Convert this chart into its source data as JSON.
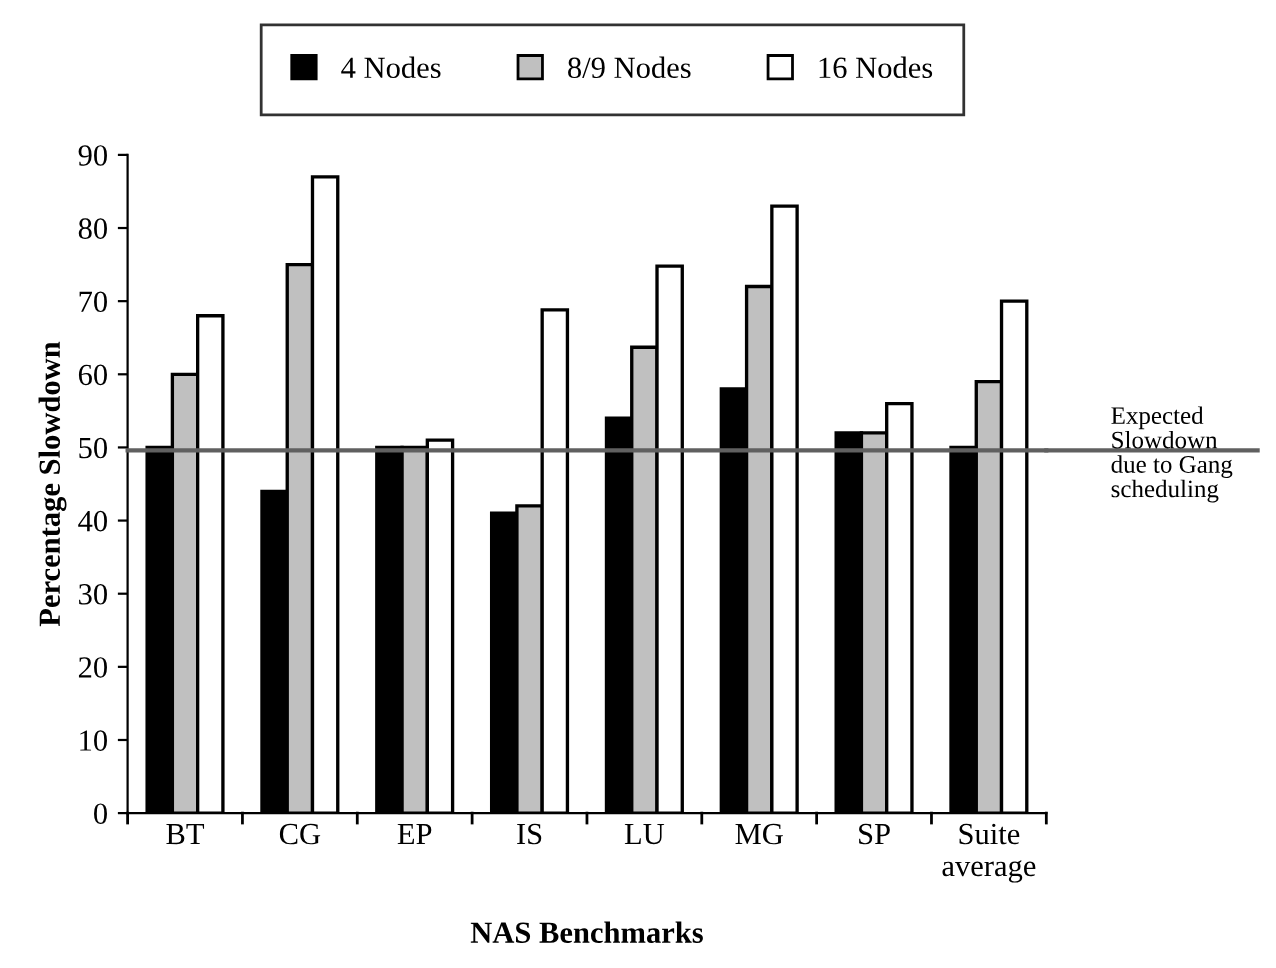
{
  "chart_data": {
    "type": "bar",
    "xlabel": "NAS Benchmarks",
    "ylabel": "Percentage Slowdown",
    "categories": [
      "BT",
      "CG",
      "EP",
      "IS",
      "LU",
      "MG",
      "SP",
      "Suite\naverage"
    ],
    "series": [
      {
        "name": "4 Nodes",
        "color": "#000000",
        "values": [
          50,
          44,
          50,
          41,
          54,
          58,
          52,
          50
        ]
      },
      {
        "name": "8/9 Nodes",
        "color": "#c0c0c0",
        "values": [
          60,
          75,
          50,
          42,
          63.7,
          72,
          52,
          59
        ]
      },
      {
        "name": "16 Nodes",
        "color": "#ffffff",
        "values": [
          68,
          87,
          51,
          68.8,
          74.8,
          83,
          56,
          70
        ]
      }
    ],
    "ylim": [
      0,
      90
    ],
    "yticks": [
      0,
      10,
      20,
      30,
      40,
      50,
      60,
      70,
      80,
      90
    ],
    "ref_lines": [
      {
        "axis": "y",
        "value": 49.6,
        "label": "Expected\nSlowdown\ndue to Gang\nscheduling",
        "color": "#606060"
      }
    ],
    "grid": false,
    "legend": "top"
  }
}
